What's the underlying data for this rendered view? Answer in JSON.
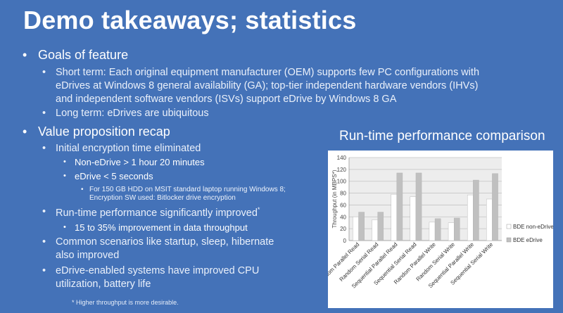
{
  "slide": {
    "title": "Demo takeaways; statistics",
    "footnote": "* Higher throughput is more desirable."
  },
  "goals": {
    "heading": "Goals of feature",
    "short_term_lines": [
      "Short term: Each original equipment manufacturer (OEM) supports few PC configurations with",
      "eDrives at Windows 8 general availability (GA); top-tier independent hardware vendors (IHVs)",
      "and independent software vendors (ISVs) support eDrive by Windows 8 GA"
    ],
    "long_term": "Long term: eDrives are ubiquitous"
  },
  "value": {
    "heading": "Value proposition recap",
    "encryption": "Initial encryption time eliminated",
    "non_edrive": "Non-eDrive > 1 hour 20 minutes",
    "edrive": "eDrive < 5 seconds",
    "note_lines": [
      "For 150 GB HDD on MSIT standard laptop running Windows 8;",
      "Encryption SW used: Bitlocker drive encryption"
    ],
    "runtime": "Run-time performance significantly improved",
    "runtime_mark": "*",
    "improvement": "15 to 35% improvement in data throughput",
    "scenarios_lines": [
      "Common scenarios like startup, sleep, hibernate",
      "also improved"
    ],
    "cpu_lines": [
      "eDrive-enabled systems have improved CPU",
      "utilization, battery life"
    ]
  },
  "chart_data": {
    "type": "bar",
    "title": "Run-time performance comparison",
    "ylabel": "Throughput (in MBPS*)",
    "xlabel": "",
    "ylim": [
      0,
      140
    ],
    "yticks": [
      0,
      20,
      40,
      60,
      80,
      100,
      120,
      140
    ],
    "grid": true,
    "legend_position": "right",
    "categories": [
      "Random Parallel Read",
      "Random Serial Read",
      "Sequential Parallel Read",
      "Sequential Serial Read",
      "Random Parallel Write",
      "Random Serial Write",
      "Sequential Parallel Write",
      "Sequential Serial Write"
    ],
    "series": [
      {
        "name": "BDE non-eDrive",
        "color": "#ffffff",
        "values": [
          40,
          35,
          78,
          74,
          31,
          30,
          77,
          70
        ]
      },
      {
        "name": "BDE eDrive",
        "color": "#c0c0c0",
        "values": [
          48,
          48,
          114,
          114,
          37,
          38,
          102,
          113
        ]
      }
    ]
  }
}
